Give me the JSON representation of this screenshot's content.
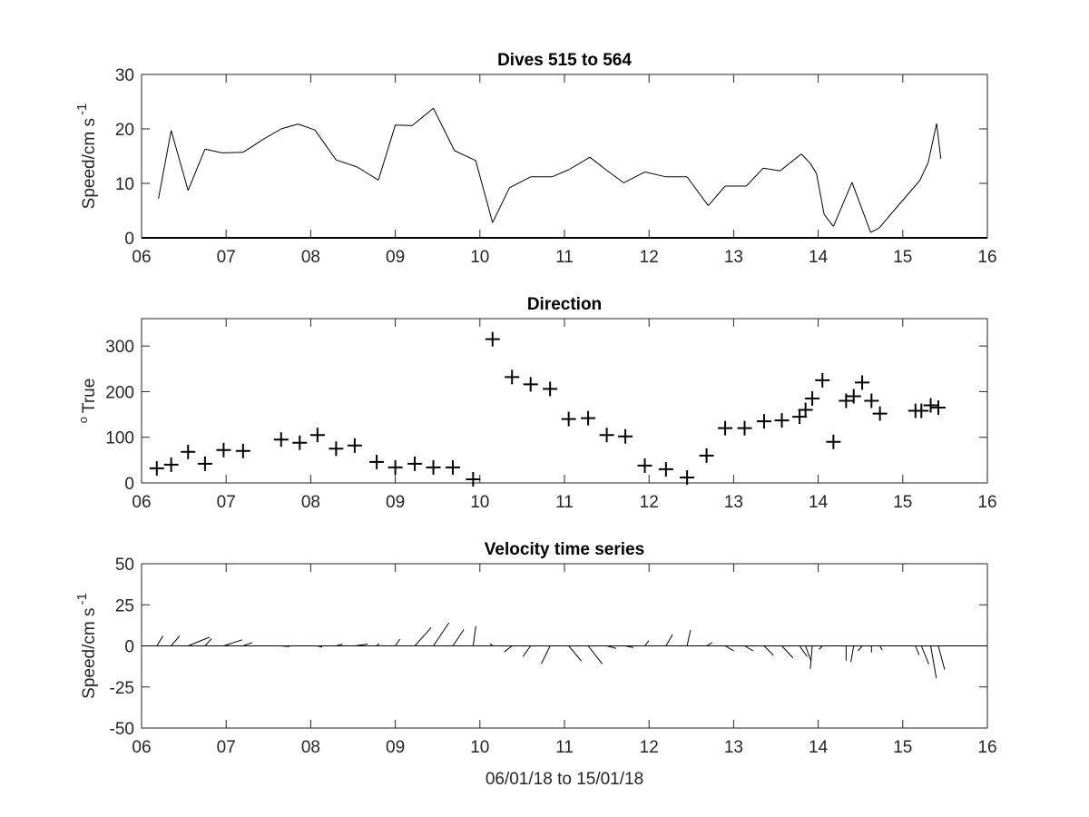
{
  "chart_data": [
    {
      "type": "line",
      "title": "Dives 515 to 564",
      "ylabel": "Speed/cm s",
      "ylabel_sup": "-1",
      "xlim": [
        6,
        16
      ],
      "ylim": [
        0,
        30
      ],
      "xticks": [
        "06",
        "07",
        "08",
        "09",
        "10",
        "11",
        "12",
        "13",
        "14",
        "15",
        "16"
      ],
      "yticks": [
        0,
        10,
        20,
        30
      ],
      "x": [
        6.2,
        6.35,
        6.55,
        6.75,
        6.95,
        7.2,
        7.45,
        7.65,
        7.85,
        8.05,
        8.3,
        8.55,
        8.8,
        9.0,
        9.2,
        9.45,
        9.7,
        9.95,
        10.15,
        10.35,
        10.6,
        10.85,
        11.05,
        11.3,
        11.5,
        11.7,
        11.95,
        12.2,
        12.45,
        12.7,
        12.9,
        13.15,
        13.35,
        13.55,
        13.8,
        13.9,
        13.98,
        14.07,
        14.18,
        14.4,
        14.62,
        14.72,
        14.95,
        15.2,
        15.3,
        15.4,
        15.45
      ],
      "y": [
        7.2,
        19.7,
        8.7,
        16.3,
        15.6,
        15.7,
        18.2,
        20.0,
        20.9,
        19.8,
        14.3,
        13.0,
        10.6,
        20.7,
        20.6,
        23.8,
        16.0,
        14.2,
        2.8,
        9.2,
        11.2,
        11.2,
        12.5,
        14.8,
        12.4,
        10.1,
        12.1,
        11.2,
        11.2,
        5.9,
        9.5,
        9.5,
        12.8,
        12.3,
        15.4,
        13.8,
        11.8,
        4.3,
        2.1,
        10.2,
        1.0,
        1.8,
        6.0,
        10.5,
        13.8,
        21.0,
        14.5
      ],
      "grid": false
    },
    {
      "type": "scatter",
      "title": "Direction",
      "ylabel": "True",
      "ylabel_sup": "o",
      "xlim": [
        6,
        16
      ],
      "ylim": [
        0,
        360
      ],
      "xticks": [
        "06",
        "07",
        "08",
        "09",
        "10",
        "11",
        "12",
        "13",
        "14",
        "15",
        "16"
      ],
      "yticks": [
        0,
        100,
        200,
        300
      ],
      "marker": "+",
      "x": [
        6.18,
        6.35,
        6.55,
        6.75,
        6.97,
        7.2,
        7.65,
        7.87,
        8.08,
        8.3,
        8.52,
        8.78,
        9.0,
        9.23,
        9.45,
        9.68,
        9.92,
        10.15,
        10.38,
        10.6,
        10.83,
        11.05,
        11.28,
        11.5,
        11.72,
        11.95,
        12.2,
        12.45,
        12.68,
        12.9,
        13.13,
        13.36,
        13.57,
        13.78,
        13.85,
        13.93,
        14.05,
        14.18,
        14.33,
        14.42,
        14.52,
        14.63,
        14.73,
        15.15,
        15.22,
        15.33,
        15.42
      ],
      "y": [
        32,
        40,
        68,
        42,
        72,
        70,
        95,
        88,
        105,
        75,
        82,
        46,
        34,
        42,
        34,
        34,
        8,
        315,
        232,
        216,
        206,
        140,
        142,
        105,
        102,
        38,
        30,
        12,
        60,
        120,
        120,
        135,
        137,
        145,
        160,
        185,
        225,
        90,
        180,
        190,
        220,
        180,
        152,
        158,
        158,
        170,
        165
      ],
      "grid": false
    },
    {
      "type": "vector",
      "title": "Velocity time series",
      "ylabel": "Speed/cm s",
      "ylabel_sup": "-1",
      "xlabel": "06/01/18 to 15/01/18",
      "xlim": [
        6,
        16
      ],
      "ylim": [
        -50,
        50
      ],
      "xticks": [
        "06",
        "07",
        "08",
        "09",
        "10",
        "11",
        "12",
        "13",
        "14",
        "15",
        "16"
      ],
      "yticks": [
        "-50",
        "-25",
        "0",
        "25",
        "50"
      ],
      "x": [
        6.18,
        6.35,
        6.55,
        6.75,
        6.97,
        7.2,
        7.65,
        7.87,
        8.08,
        8.3,
        8.52,
        8.78,
        9.0,
        9.23,
        9.45,
        9.68,
        9.92,
        10.15,
        10.38,
        10.6,
        10.83,
        11.05,
        11.28,
        11.5,
        11.72,
        11.95,
        12.2,
        12.45,
        12.68,
        12.9,
        13.13,
        13.36,
        13.57,
        13.78,
        13.85,
        13.93,
        14.05,
        14.18,
        14.33,
        14.42,
        14.52,
        14.63,
        14.73,
        15.15,
        15.22,
        15.33,
        15.42
      ],
      "speed": [
        7.2,
        8,
        14,
        6,
        12,
        6,
        5,
        2,
        3,
        4,
        8,
        2,
        5,
        15,
        17,
        12,
        12,
        2,
        6,
        8,
        12,
        12,
        14,
        6,
        5,
        4,
        8,
        10,
        4,
        6,
        6,
        8,
        10,
        8,
        10,
        14,
        3,
        2,
        9,
        10,
        4,
        4,
        3,
        6,
        12,
        20,
        15
      ],
      "direction": [
        32,
        40,
        68,
        42,
        72,
        70,
        95,
        88,
        105,
        75,
        82,
        46,
        34,
        42,
        34,
        34,
        8,
        315,
        232,
        216,
        206,
        140,
        142,
        105,
        102,
        38,
        30,
        12,
        60,
        120,
        120,
        135,
        137,
        145,
        160,
        185,
        225,
        90,
        180,
        190,
        220,
        180,
        152,
        158,
        158,
        170,
        165
      ],
      "grid": false
    }
  ]
}
